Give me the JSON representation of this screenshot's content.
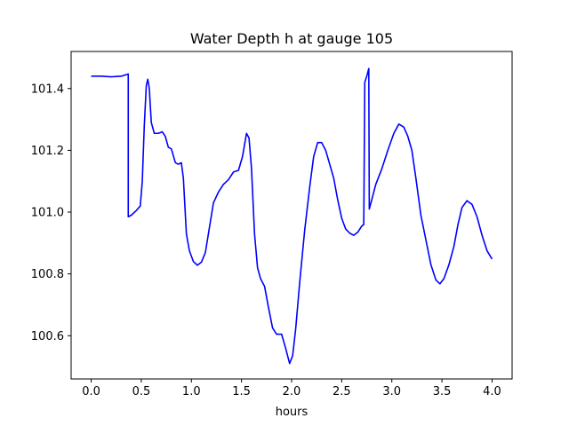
{
  "chart_data": {
    "type": "line",
    "title": "Water Depth h at gauge 105",
    "xlabel": "hours",
    "ylabel": "",
    "xlim": [
      -0.2,
      4.2
    ],
    "ylim": [
      100.46,
      101.52
    ],
    "xticks": [
      0.0,
      0.5,
      1.0,
      1.5,
      2.0,
      2.5,
      3.0,
      3.5,
      4.0
    ],
    "xtick_labels": [
      "0.0",
      "0.5",
      "1.0",
      "1.5",
      "2.0",
      "2.5",
      "3.0",
      "3.5",
      "4.0"
    ],
    "yticks": [
      100.6,
      100.8,
      101.0,
      101.2,
      101.4
    ],
    "ytick_labels": [
      "100.6",
      "100.8",
      "101.0",
      "101.2",
      "101.4"
    ],
    "grid": false,
    "series": [
      {
        "color": "#0000ff",
        "points": [
          [
            0.0,
            101.44
          ],
          [
            0.1,
            101.44
          ],
          [
            0.2,
            101.438
          ],
          [
            0.3,
            101.44
          ],
          [
            0.37,
            101.447
          ],
          [
            0.37,
            100.985
          ],
          [
            0.4,
            100.99
          ],
          [
            0.45,
            101.005
          ],
          [
            0.49,
            101.02
          ],
          [
            0.51,
            101.1
          ],
          [
            0.53,
            101.28
          ],
          [
            0.55,
            101.41
          ],
          [
            0.565,
            101.43
          ],
          [
            0.58,
            101.4
          ],
          [
            0.6,
            101.29
          ],
          [
            0.63,
            101.255
          ],
          [
            0.67,
            101.255
          ],
          [
            0.71,
            101.26
          ],
          [
            0.74,
            101.245
          ],
          [
            0.77,
            101.21
          ],
          [
            0.8,
            101.205
          ],
          [
            0.84,
            101.16
          ],
          [
            0.87,
            101.155
          ],
          [
            0.9,
            101.16
          ],
          [
            0.92,
            101.11
          ],
          [
            0.95,
            100.93
          ],
          [
            0.98,
            100.875
          ],
          [
            1.02,
            100.84
          ],
          [
            1.06,
            100.828
          ],
          [
            1.1,
            100.838
          ],
          [
            1.14,
            100.87
          ],
          [
            1.18,
            100.95
          ],
          [
            1.22,
            101.03
          ],
          [
            1.27,
            101.065
          ],
          [
            1.32,
            101.09
          ],
          [
            1.37,
            101.105
          ],
          [
            1.42,
            101.13
          ],
          [
            1.47,
            101.135
          ],
          [
            1.51,
            101.18
          ],
          [
            1.55,
            101.255
          ],
          [
            1.575,
            101.24
          ],
          [
            1.6,
            101.14
          ],
          [
            1.63,
            100.93
          ],
          [
            1.66,
            100.82
          ],
          [
            1.69,
            100.785
          ],
          [
            1.73,
            100.76
          ],
          [
            1.77,
            100.69
          ],
          [
            1.81,
            100.625
          ],
          [
            1.85,
            100.605
          ],
          [
            1.9,
            100.605
          ],
          [
            1.94,
            100.56
          ],
          [
            1.98,
            100.51
          ],
          [
            2.01,
            100.535
          ],
          [
            2.04,
            100.62
          ],
          [
            2.08,
            100.77
          ],
          [
            2.13,
            100.94
          ],
          [
            2.18,
            101.08
          ],
          [
            2.22,
            101.18
          ],
          [
            2.26,
            101.225
          ],
          [
            2.3,
            101.225
          ],
          [
            2.34,
            101.2
          ],
          [
            2.38,
            101.155
          ],
          [
            2.42,
            101.11
          ],
          [
            2.46,
            101.04
          ],
          [
            2.5,
            100.98
          ],
          [
            2.54,
            100.945
          ],
          [
            2.58,
            100.932
          ],
          [
            2.62,
            100.925
          ],
          [
            2.66,
            100.935
          ],
          [
            2.7,
            100.955
          ],
          [
            2.72,
            100.96
          ],
          [
            2.73,
            101.42
          ],
          [
            2.75,
            101.44
          ],
          [
            2.77,
            101.465
          ],
          [
            2.775,
            101.01
          ],
          [
            2.8,
            101.04
          ],
          [
            2.84,
            101.09
          ],
          [
            2.9,
            101.14
          ],
          [
            2.96,
            101.2
          ],
          [
            3.02,
            101.255
          ],
          [
            3.07,
            101.285
          ],
          [
            3.12,
            101.275
          ],
          [
            3.16,
            101.245
          ],
          [
            3.2,
            101.2
          ],
          [
            3.24,
            101.11
          ],
          [
            3.29,
            100.99
          ],
          [
            3.34,
            100.91
          ],
          [
            3.39,
            100.83
          ],
          [
            3.44,
            100.78
          ],
          [
            3.48,
            100.768
          ],
          [
            3.52,
            100.785
          ],
          [
            3.57,
            100.83
          ],
          [
            3.62,
            100.89
          ],
          [
            3.66,
            100.96
          ],
          [
            3.7,
            101.015
          ],
          [
            3.75,
            101.037
          ],
          [
            3.8,
            101.025
          ],
          [
            3.85,
            100.985
          ],
          [
            3.9,
            100.925
          ],
          [
            3.95,
            100.875
          ],
          [
            4.0,
            100.848
          ]
        ]
      }
    ]
  }
}
